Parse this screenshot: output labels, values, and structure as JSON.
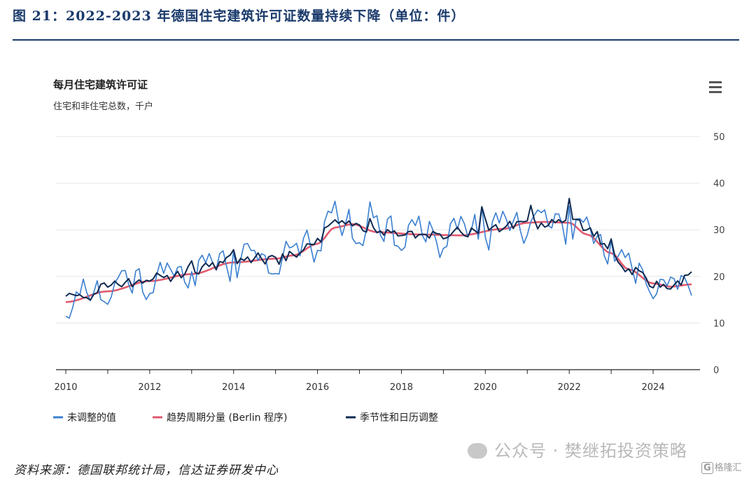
{
  "figure_title": "图 21：2022-2023 年德国住宅建筑许可证数量持续下降（单位：件）",
  "source": "资料来源：德国联邦统计局，信达证券研发中心",
  "watermark": "公众号 · 樊继拓投资策略",
  "logo_text": "格隆汇",
  "logo_glyph": "G",
  "menu_icon": "hamburger-menu-icon",
  "colors": {
    "unadjusted": "#3a7fd0",
    "trend": "#e05a6e",
    "seasonal": "#0f2a52",
    "title": "#1a3a6b"
  },
  "chart_data": {
    "type": "line",
    "title": "每月住宅建筑许可证",
    "subtitle": "住宅和非住宅总数，千户",
    "ylim": [
      0,
      50
    ],
    "yticks": [
      0,
      10,
      20,
      30,
      40,
      50
    ],
    "xticks": [
      "2010",
      "2012",
      "2014",
      "2016",
      "2018",
      "2020",
      "2022",
      "2024"
    ],
    "grid": true,
    "legend_position": "bottom",
    "x_start": "2010-01",
    "x_end": "2024-12",
    "series": [
      {
        "name": "未调整的值",
        "key": "unadjusted",
        "anchors": [
          [
            "2010-01",
            12.5
          ],
          [
            "2010-06",
            16
          ],
          [
            "2011-01",
            17
          ],
          [
            "2011-06",
            18.5
          ],
          [
            "2012-01",
            19
          ],
          [
            "2012-06",
            20.5
          ],
          [
            "2013-01",
            21
          ],
          [
            "2013-06",
            22
          ],
          [
            "2014-01",
            23.5
          ],
          [
            "2014-06",
            24
          ],
          [
            "2015-01",
            23.5
          ],
          [
            "2015-06",
            25
          ],
          [
            "2016-01",
            28
          ],
          [
            "2016-06",
            31.5
          ],
          [
            "2017-01",
            30.5
          ],
          [
            "2017-06",
            29.5
          ],
          [
            "2018-01",
            29.5
          ],
          [
            "2018-06",
            29
          ],
          [
            "2019-01",
            29
          ],
          [
            "2019-06",
            29.5
          ],
          [
            "2020-01",
            30
          ],
          [
            "2020-06",
            30.5
          ],
          [
            "2021-01",
            31.5
          ],
          [
            "2021-06",
            31.5
          ],
          [
            "2022-01",
            32
          ],
          [
            "2022-06",
            30.5
          ],
          [
            "2023-01",
            25.5
          ],
          [
            "2023-06",
            21.5
          ],
          [
            "2024-01",
            18.5
          ],
          [
            "2024-06",
            17.5
          ],
          [
            "2024-12",
            19.5
          ]
        ]
      },
      {
        "name": "趋势周期分量 (Berlin 程序)",
        "key": "trend",
        "anchors": [
          [
            "2010-01",
            14.5
          ],
          [
            "2011-01",
            16.8
          ],
          [
            "2012-01",
            19
          ],
          [
            "2013-01",
            20.5
          ],
          [
            "2014-01",
            23
          ],
          [
            "2015-01",
            23.8
          ],
          [
            "2015-06",
            24.5
          ],
          [
            "2016-01",
            27
          ],
          [
            "2016-06",
            30.5
          ],
          [
            "2016-11",
            31.2
          ],
          [
            "2017-06",
            29.5
          ],
          [
            "2018-06",
            29
          ],
          [
            "2019-06",
            28.8
          ],
          [
            "2020-06",
            30.2
          ],
          [
            "2021-01",
            31.5
          ],
          [
            "2021-06",
            31.7
          ],
          [
            "2022-01",
            31.5
          ],
          [
            "2022-06",
            29
          ],
          [
            "2023-01",
            25
          ],
          [
            "2023-06",
            21.5
          ],
          [
            "2024-01",
            18.5
          ],
          [
            "2024-06",
            17.8
          ],
          [
            "2024-12",
            18.3
          ]
        ]
      },
      {
        "name": "季节性和日历调整",
        "key": "seasonal",
        "anchors": [
          [
            "2010-01",
            15.5
          ],
          [
            "2010-06",
            15.5
          ],
          [
            "2011-01",
            17.5
          ],
          [
            "2011-06",
            18.5
          ],
          [
            "2012-01",
            19.5
          ],
          [
            "2012-06",
            20
          ],
          [
            "2013-01",
            21
          ],
          [
            "2013-06",
            22
          ],
          [
            "2014-01",
            23.5
          ],
          [
            "2014-06",
            24
          ],
          [
            "2015-01",
            23.5
          ],
          [
            "2015-06",
            25
          ],
          [
            "2016-01",
            28
          ],
          [
            "2016-06",
            31.5
          ],
          [
            "2017-01",
            30.5
          ],
          [
            "2017-06",
            29.5
          ],
          [
            "2018-01",
            29.5
          ],
          [
            "2018-06",
            29
          ],
          [
            "2019-01",
            29
          ],
          [
            "2019-06",
            29.5
          ],
          [
            "2020-01",
            30
          ],
          [
            "2020-06",
            30.5
          ],
          [
            "2021-01",
            31.5
          ],
          [
            "2021-06",
            31
          ],
          [
            "2022-01",
            32
          ],
          [
            "2022-06",
            30.5
          ],
          [
            "2023-01",
            25.5
          ],
          [
            "2023-06",
            21.5
          ],
          [
            "2024-01",
            18.5
          ],
          [
            "2024-06",
            17.5
          ],
          [
            "2024-12",
            19.8
          ]
        ]
      }
    ]
  }
}
